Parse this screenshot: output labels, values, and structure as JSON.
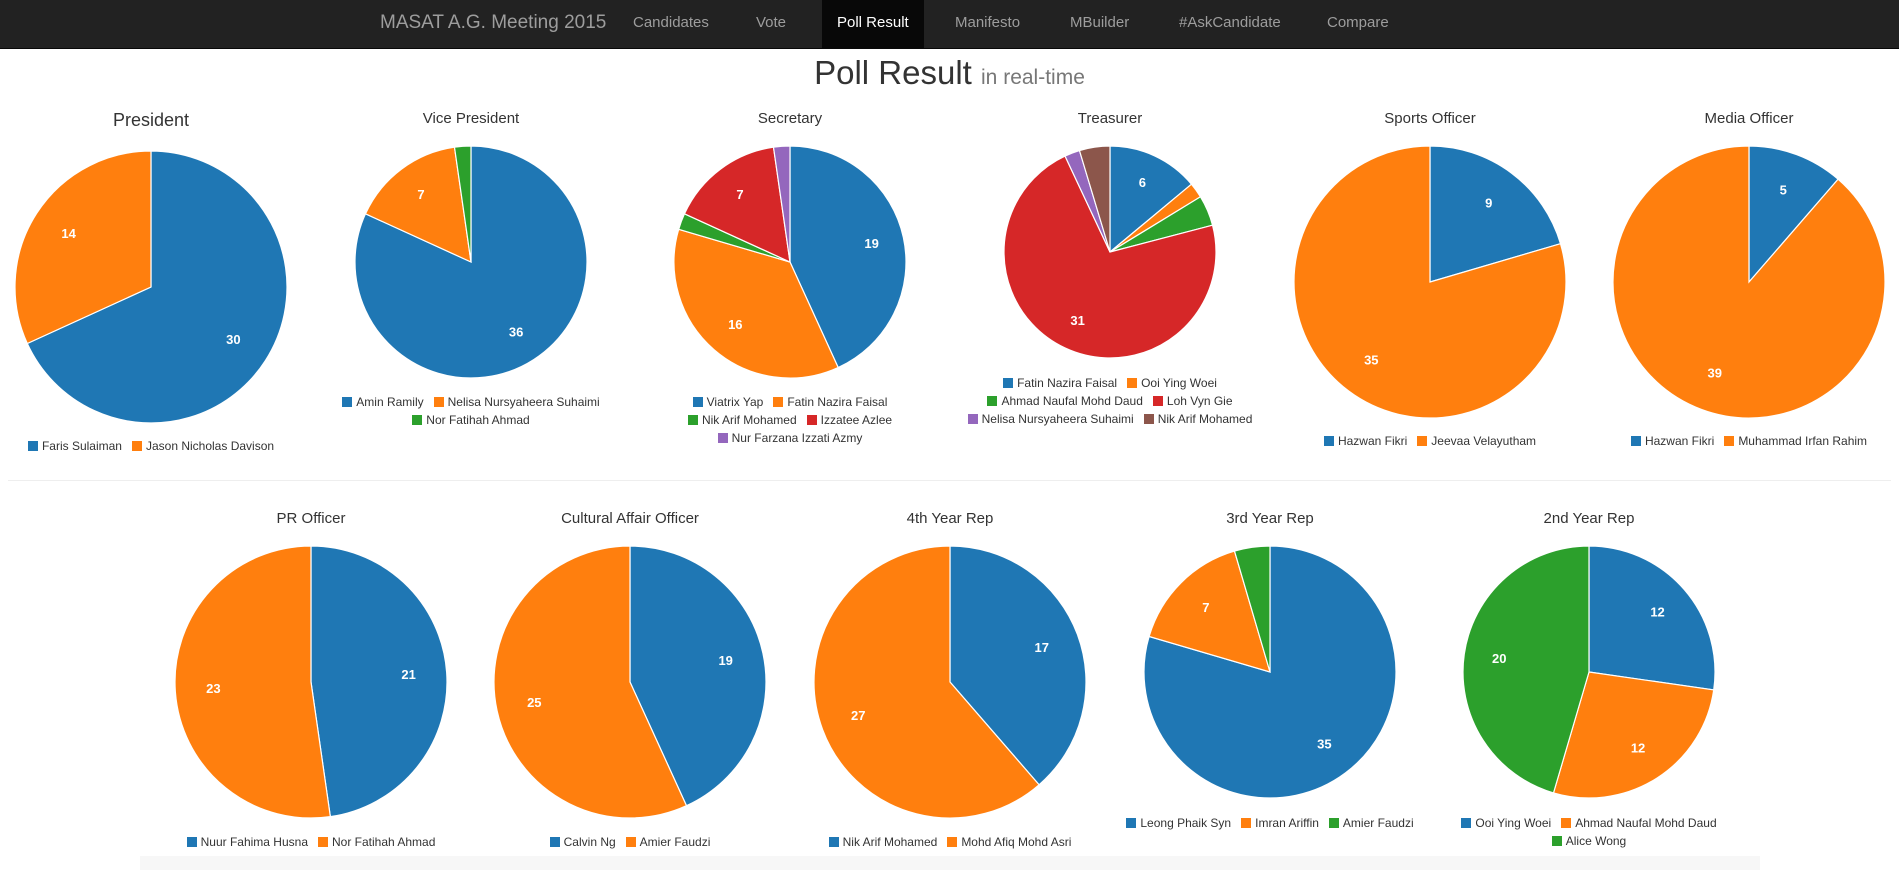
{
  "navbar": {
    "brand": "MASAT A.G. Meeting 2015",
    "items": [
      {
        "label": "Candidates",
        "active": false
      },
      {
        "label": "Vote",
        "active": false
      },
      {
        "label": "Poll Result",
        "active": true
      },
      {
        "label": "Manifesto",
        "active": false
      },
      {
        "label": "MBuilder",
        "active": false
      },
      {
        "label": "#AskCandidate",
        "active": false
      },
      {
        "label": "Compare",
        "active": false
      }
    ]
  },
  "page": {
    "title": "Poll Result",
    "subtitle": "in real-time"
  },
  "colors": {
    "blue": "#1f77b4",
    "orange": "#ff7f0e",
    "green": "#2ca02c",
    "red": "#d62728",
    "purple": "#9467bd",
    "brown": "#8c564b",
    "navbar": "#222222"
  },
  "chart_data": [
    {
      "type": "pie",
      "title": "President",
      "legend_position": "bottom",
      "labels": [
        "Faris Sulaiman",
        "Jason Nicholas Davison"
      ],
      "values": [
        30,
        14
      ]
    },
    {
      "type": "pie",
      "title": "Vice President",
      "legend_position": "bottom",
      "labels": [
        "Amin Ramily",
        "Nelisa Nursyaheera Suhaimi",
        "Nor Fatihah Ahmad"
      ],
      "values": [
        36,
        7,
        1
      ]
    },
    {
      "type": "pie",
      "title": "Secretary",
      "legend_position": "bottom",
      "labels": [
        "Viatrix Yap",
        "Fatin Nazira Faisal",
        "Nik Arif Mohamed",
        "Izzatee Azlee",
        "Nur Farzana Izzati Azmy"
      ],
      "values": [
        19,
        16,
        1,
        7,
        1
      ]
    },
    {
      "type": "pie",
      "title": "Treasurer",
      "legend_position": "bottom",
      "labels": [
        "Fatin Nazira Faisal",
        "Ooi Ying Woei",
        "Ahmad Naufal Mohd Daud",
        "Loh Vyn Gie",
        "Nelisa Nursyaheera Suhaimi",
        "Nik Arif Mohamed"
      ],
      "values": [
        6,
        1,
        2,
        31,
        1,
        2
      ]
    },
    {
      "type": "pie",
      "title": "Sports Officer",
      "legend_position": "bottom",
      "labels": [
        "Hazwan Fikri",
        "Jeevaa Velayutham"
      ],
      "values": [
        9,
        35
      ]
    },
    {
      "type": "pie",
      "title": "Media Officer",
      "legend_position": "bottom",
      "labels": [
        "Hazwan Fikri",
        "Muhammad Irfan Rahim"
      ],
      "values": [
        5,
        39
      ]
    },
    {
      "type": "pie",
      "title": "PR Officer",
      "legend_position": "bottom",
      "labels": [
        "Nuur Fahima Husna",
        "Nor Fatihah Ahmad"
      ],
      "values": [
        21,
        23
      ]
    },
    {
      "type": "pie",
      "title": "Cultural Affair Officer",
      "legend_position": "bottom",
      "labels": [
        "Calvin Ng",
        "Amier Faudzi"
      ],
      "values": [
        19,
        25
      ]
    },
    {
      "type": "pie",
      "title": "4th Year Rep",
      "legend_position": "bottom",
      "labels": [
        "Nik Arif Mohamed",
        "Mohd Afiq Mohd Asri"
      ],
      "values": [
        17,
        27
      ]
    },
    {
      "type": "pie",
      "title": "3rd Year Rep",
      "legend_position": "bottom",
      "labels": [
        "Leong Phaik Syn",
        "Imran Ariffin",
        "Amier Faudzi"
      ],
      "values": [
        35,
        7,
        2
      ]
    },
    {
      "type": "pie",
      "title": "2nd Year Rep",
      "legend_position": "bottom",
      "labels": [
        "Ooi Ying Woei",
        "Ahmad Naufal Mohd Daud",
        "Alice Wong"
      ],
      "values": [
        12,
        12,
        20
      ]
    }
  ]
}
